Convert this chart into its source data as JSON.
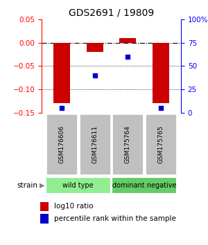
{
  "title": "GDS2691 / 19809",
  "samples": [
    "GSM176606",
    "GSM176611",
    "GSM175764",
    "GSM175765"
  ],
  "log10_ratio": [
    -0.13,
    -0.02,
    0.01,
    -0.13
  ],
  "percentile_rank": [
    5,
    40,
    60,
    5
  ],
  "ylim_left": [
    -0.15,
    0.05
  ],
  "ylim_right": [
    0,
    100
  ],
  "yticks_left": [
    0.05,
    0,
    -0.05,
    -0.1,
    -0.15
  ],
  "yticks_right": [
    100,
    75,
    50,
    25,
    0
  ],
  "groups": [
    {
      "label": "wild type",
      "samples": [
        0,
        1
      ],
      "color": "#90EE90"
    },
    {
      "label": "dominant negative",
      "samples": [
        2,
        3
      ],
      "color": "#66CC66"
    }
  ],
  "group_label": "strain",
  "bar_color": "#CC0000",
  "dot_color": "#0000CC",
  "bar_width": 0.5,
  "hline_y": 0,
  "dotted_lines": [
    -0.05,
    -0.1
  ],
  "legend_bar_label": "log10 ratio",
  "legend_dot_label": "percentile rank within the sample",
  "background_color": "#ffffff",
  "plot_bg_color": "#ffffff",
  "label_box_color": "#c0c0c0"
}
